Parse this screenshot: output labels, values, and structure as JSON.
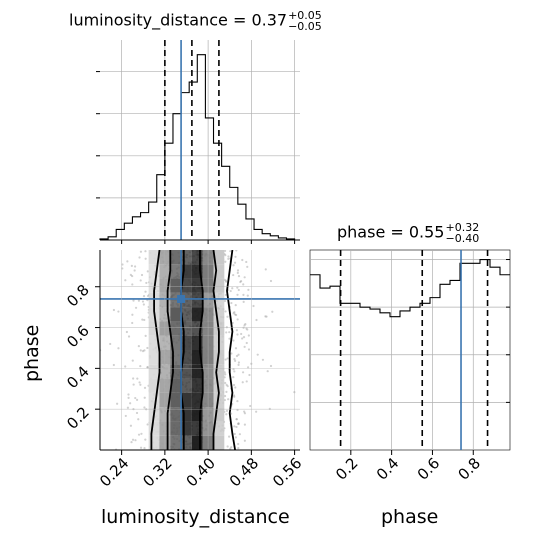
{
  "chart_data": [
    {
      "type": "histogram",
      "panel": "luminosity_distance marginal",
      "title": {
        "param": "luminosity_distance",
        "value": "0.37",
        "plus": "+0.05",
        "minus": "−0.05"
      },
      "x_range": [
        0.2,
        0.57
      ],
      "bin_edges": [
        0.2,
        0.215,
        0.23,
        0.245,
        0.26,
        0.275,
        0.29,
        0.305,
        0.32,
        0.335,
        0.35,
        0.365,
        0.38,
        0.395,
        0.41,
        0.425,
        0.44,
        0.455,
        0.47,
        0.485,
        0.5,
        0.515,
        0.53,
        0.545,
        0.56,
        0.57
      ],
      "counts": [
        0.5,
        1.5,
        5,
        8,
        11,
        13,
        18,
        31,
        46,
        60,
        70,
        75,
        88,
        58,
        46,
        35,
        25,
        17,
        10,
        5,
        3,
        2,
        1,
        0.5,
        0
      ],
      "y_max": 95,
      "quantiles": [
        0.32,
        0.37,
        0.42
      ],
      "truth": 0.35,
      "ytick_values": [
        20,
        40,
        60,
        80
      ]
    },
    {
      "type": "histogram2d",
      "panel": "luminosity_distance vs phase",
      "x_range": [
        0.2,
        0.57
      ],
      "y_range": [
        0.0,
        0.98
      ],
      "truth": {
        "x": 0.35,
        "y": 0.74
      },
      "density_columns": [
        {
          "x0": 0.29,
          "x1": 0.31,
          "shade": "#d8d8d8"
        },
        {
          "x0": 0.31,
          "x1": 0.33,
          "shade": "#a0a0a0"
        },
        {
          "x0": 0.33,
          "x1": 0.35,
          "shade": "#5a5a5a"
        },
        {
          "x0": 0.35,
          "x1": 0.37,
          "shade": "#333333"
        },
        {
          "x0": 0.37,
          "x1": 0.39,
          "shade": "#1a1a1a"
        },
        {
          "x0": 0.39,
          "x1": 0.41,
          "shade": "#7a7a7a"
        },
        {
          "x0": 0.41,
          "x1": 0.43,
          "shade": "#c8c8c8"
        }
      ],
      "contours": [
        {
          "name": "outer-left",
          "points": [
            [
              0.31,
              0.98
            ],
            [
              0.305,
              0.88
            ],
            [
              0.3,
              0.78
            ],
            [
              0.3,
              0.68
            ],
            [
              0.305,
              0.58
            ],
            [
              0.31,
              0.48
            ],
            [
              0.31,
              0.38
            ],
            [
              0.305,
              0.28
            ],
            [
              0.3,
              0.18
            ],
            [
              0.295,
              0.08
            ],
            [
              0.295,
              0.0
            ]
          ]
        },
        {
          "name": "mid-left",
          "points": [
            [
              0.33,
              0.98
            ],
            [
              0.33,
              0.88
            ],
            [
              0.325,
              0.78
            ],
            [
              0.325,
              0.68
            ],
            [
              0.33,
              0.58
            ],
            [
              0.335,
              0.48
            ],
            [
              0.335,
              0.38
            ],
            [
              0.33,
              0.28
            ],
            [
              0.325,
              0.18
            ],
            [
              0.325,
              0.08
            ],
            [
              0.325,
              0.0
            ]
          ]
        },
        {
          "name": "inner-left",
          "points": [
            [
              0.355,
              0.98
            ],
            [
              0.355,
              0.88
            ],
            [
              0.35,
              0.78
            ],
            [
              0.35,
              0.68
            ],
            [
              0.355,
              0.58
            ],
            [
              0.355,
              0.48
            ],
            [
              0.35,
              0.38
            ],
            [
              0.35,
              0.28
            ],
            [
              0.355,
              0.18
            ],
            [
              0.355,
              0.08
            ],
            [
              0.355,
              0.0
            ]
          ]
        },
        {
          "name": "inner-right",
          "points": [
            [
              0.385,
              0.98
            ],
            [
              0.385,
              0.88
            ],
            [
              0.39,
              0.78
            ],
            [
              0.39,
              0.68
            ],
            [
              0.385,
              0.58
            ],
            [
              0.385,
              0.48
            ],
            [
              0.39,
              0.38
            ],
            [
              0.39,
              0.28
            ],
            [
              0.385,
              0.18
            ],
            [
              0.385,
              0.08
            ],
            [
              0.385,
              0.0
            ]
          ]
        },
        {
          "name": "mid-right",
          "points": [
            [
              0.41,
              0.98
            ],
            [
              0.415,
              0.88
            ],
            [
              0.41,
              0.78
            ],
            [
              0.415,
              0.68
            ],
            [
              0.42,
              0.58
            ],
            [
              0.42,
              0.48
            ],
            [
              0.415,
              0.38
            ],
            [
              0.42,
              0.28
            ],
            [
              0.415,
              0.18
            ],
            [
              0.41,
              0.08
            ],
            [
              0.41,
              0.0
            ]
          ]
        },
        {
          "name": "outer-right",
          "points": [
            [
              0.445,
              0.98
            ],
            [
              0.44,
              0.88
            ],
            [
              0.435,
              0.78
            ],
            [
              0.44,
              0.68
            ],
            [
              0.445,
              0.58
            ],
            [
              0.44,
              0.48
            ],
            [
              0.44,
              0.38
            ],
            [
              0.445,
              0.28
            ],
            [
              0.44,
              0.18
            ],
            [
              0.445,
              0.08
            ],
            [
              0.45,
              0.0
            ]
          ]
        }
      ],
      "xlabel": "luminosity_distance",
      "ylabel": "phase",
      "xtick_labels": [
        "0.24",
        "0.32",
        "0.40",
        "0.48",
        "0.56"
      ],
      "xtick_values": [
        0.24,
        0.32,
        0.4,
        0.48,
        0.56
      ],
      "ytick_labels": [
        "0.2",
        "0.4",
        "0.6",
        "0.8"
      ],
      "ytick_values": [
        0.2,
        0.4,
        0.6,
        0.8
      ]
    },
    {
      "type": "histogram",
      "panel": "phase marginal",
      "title": {
        "param": "phase",
        "value": "0.55",
        "plus": "+0.32",
        "minus": "−0.40"
      },
      "x_range": [
        0.0,
        0.98
      ],
      "bin_edges": [
        0.0,
        0.049,
        0.098,
        0.147,
        0.196,
        0.245,
        0.294,
        0.343,
        0.392,
        0.441,
        0.49,
        0.539,
        0.588,
        0.637,
        0.686,
        0.735,
        0.784,
        0.833,
        0.882,
        0.931,
        0.98
      ],
      "counts": [
        92,
        85,
        86,
        77,
        77,
        75,
        74,
        72,
        70,
        73,
        75,
        77,
        80,
        87,
        89,
        98,
        98,
        100,
        96,
        92
      ],
      "y_max": 105,
      "y_min": 0,
      "quantiles": [
        0.15,
        0.55,
        0.87
      ],
      "truth": 0.74,
      "ytick_values": [
        25,
        50,
        75,
        100
      ],
      "xlabel": "phase",
      "xtick_labels": [
        "0.2",
        "0.4",
        "0.6",
        "0.8"
      ],
      "xtick_values": [
        0.2,
        0.4,
        0.6,
        0.8
      ]
    }
  ],
  "colors": {
    "truth": "#3a75b0",
    "hist": "#000000",
    "grid": "#b0b0b0",
    "scatter": "#9a9a9a"
  }
}
